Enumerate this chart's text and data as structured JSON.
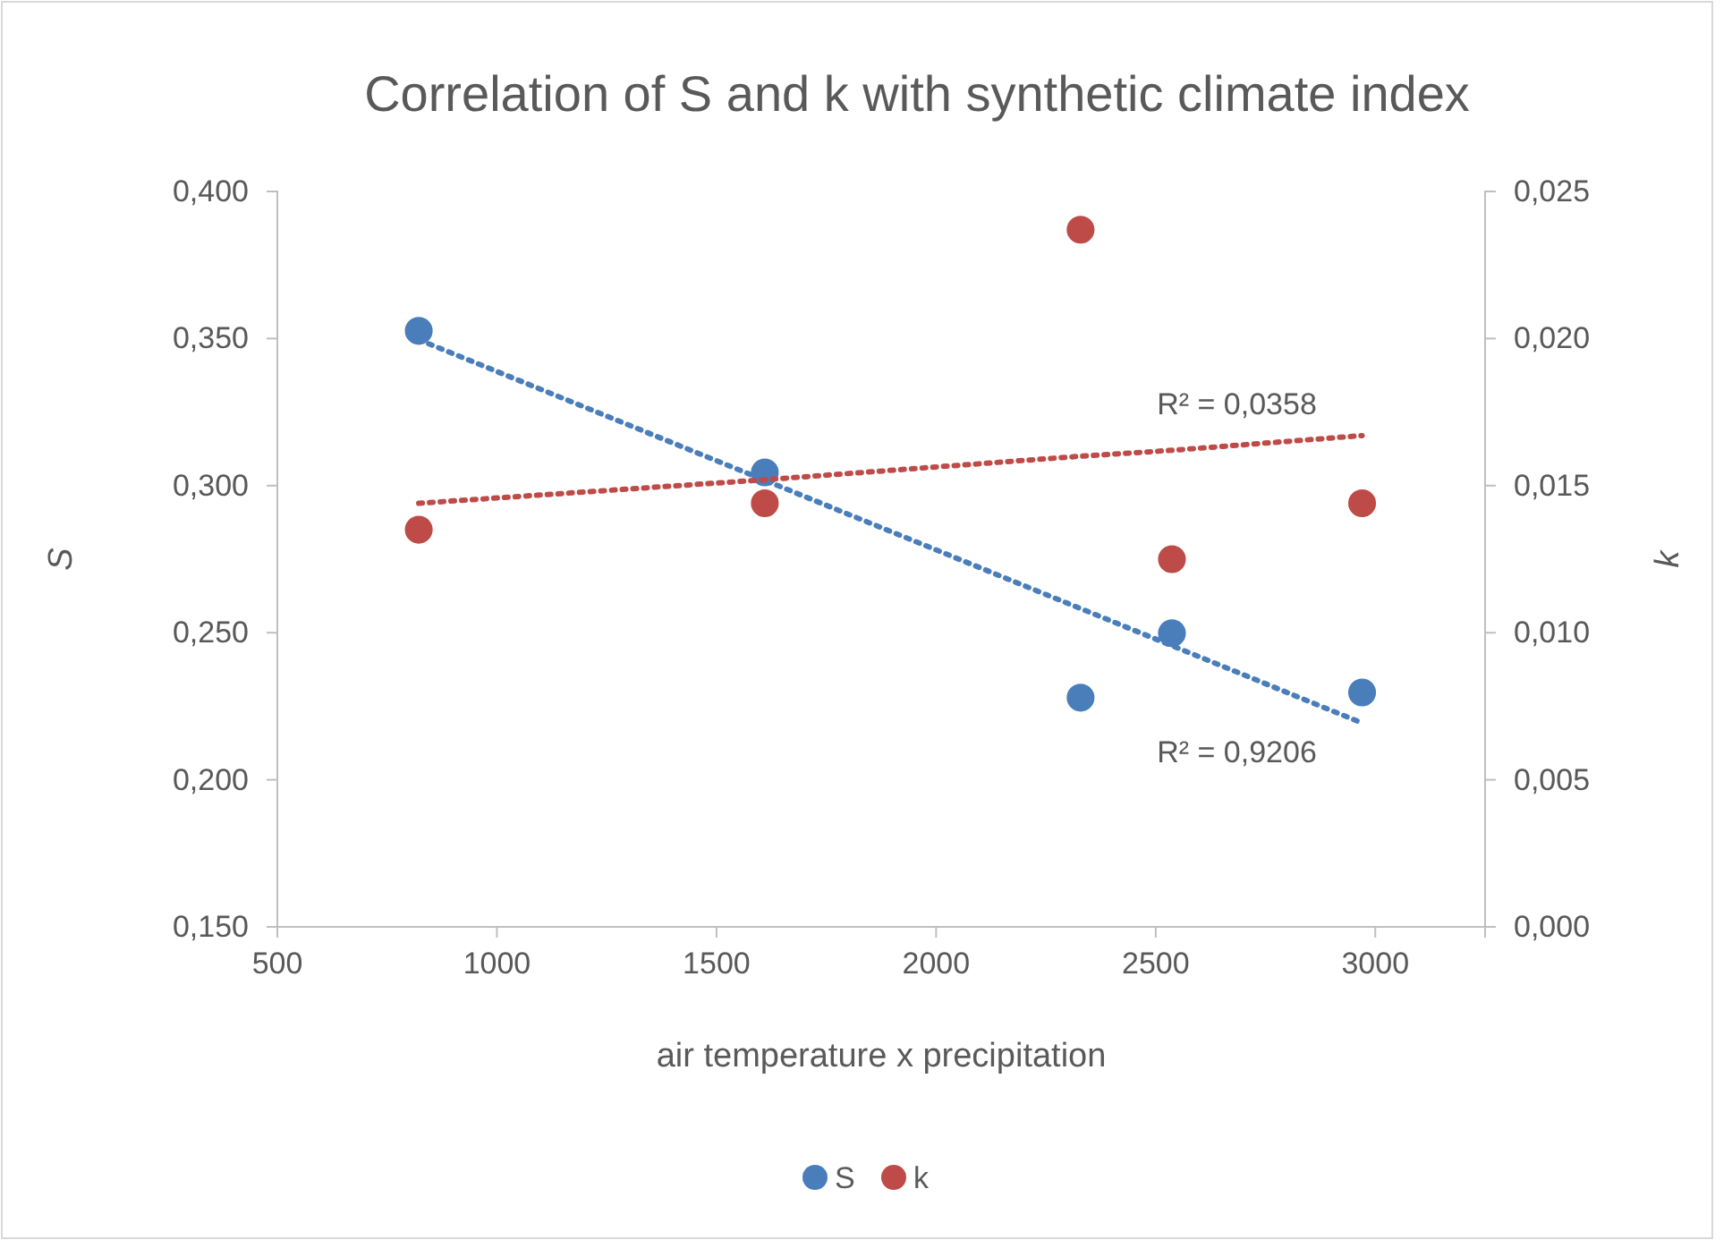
{
  "chart_data": {
    "type": "scatter",
    "title": "Correlation of S and k with synthetic climate index",
    "xlabel": "air temperature x precipitation",
    "ylabel": "S",
    "y2label": "k",
    "xlim": [
      500,
      3250
    ],
    "xticks": [
      500,
      1000,
      1500,
      2000,
      2500,
      3000
    ],
    "ylim": [
      0.15,
      0.4
    ],
    "yticks": [
      {
        "value": 0.15,
        "label": "0,150"
      },
      {
        "value": 0.2,
        "label": "0,200"
      },
      {
        "value": 0.25,
        "label": "0,250"
      },
      {
        "value": 0.3,
        "label": "0,300"
      },
      {
        "value": 0.35,
        "label": "0,350"
      },
      {
        "value": 0.4,
        "label": "0,400"
      }
    ],
    "y2lim": [
      0,
      0.025
    ],
    "y2ticks": [
      {
        "value": 0,
        "label": "0,000"
      },
      {
        "value": 0.005,
        "label": "0,005"
      },
      {
        "value": 0.01,
        "label": "0,010"
      },
      {
        "value": 0.015,
        "label": "0,015"
      },
      {
        "value": 0.02,
        "label": "0,020"
      },
      {
        "value": 0.025,
        "label": "0,025"
      }
    ],
    "x": [
      822,
      1610,
      2329,
      2537,
      2970
    ],
    "series": [
      {
        "name": "S",
        "color": "#4a7ebb",
        "marker": "circle",
        "values": [
          0.3526,
          0.3045,
          0.2279,
          0.2498,
          0.2297
        ]
      },
      {
        "name": "k",
        "color": "#be4b48",
        "marker": "circle",
        "axis": "y2",
        "values": [
          0.0135,
          0.0144,
          0.0237,
          0.0125,
          0.0144
        ]
      },
      {
        "type": "line",
        "color": "#4a7ebb",
        "line_style": "dotted",
        "marker": "none",
        "values": [
          0.3496,
          0.3018,
          0.2582,
          0.2456,
          0.2193
        ]
      },
      {
        "type": "line",
        "color": "#be4b48",
        "line_style": "dotted",
        "marker": "none",
        "axis": "y2",
        "values": [
          0.0144,
          0.0152,
          0.016,
          0.0162,
          0.0167
        ]
      }
    ],
    "annotations": [
      "R² = 0,0358",
      "R² = 0,9206"
    ],
    "grid": false,
    "legend": "bottom"
  }
}
